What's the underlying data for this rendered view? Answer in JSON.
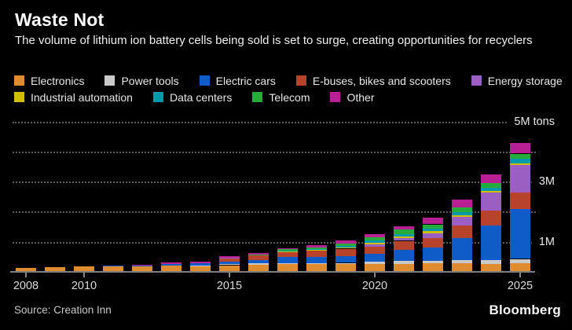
{
  "header": {
    "title": "Waste Not",
    "subtitle": "The volume of lithium ion battery cells being sold is set to surge, creating opportunities for recyclers"
  },
  "chart_data": {
    "type": "bar",
    "stacked": true,
    "unit": "M tons",
    "categories": [
      2008,
      2009,
      2010,
      2011,
      2012,
      2013,
      2014,
      2015,
      2016,
      2017,
      2018,
      2019,
      2020,
      2021,
      2022,
      2023,
      2024,
      2025
    ],
    "series": [
      {
        "name": "Electronics",
        "color": "#DE8C2F",
        "values": [
          0.12,
          0.16,
          0.18,
          0.21,
          0.19,
          0.2,
          0.2,
          0.22,
          0.24,
          0.26,
          0.25,
          0.25,
          0.27,
          0.27,
          0.28,
          0.29,
          0.27,
          0.28
        ]
      },
      {
        "name": "Power tools",
        "color": "#C9C9C9",
        "values": [
          0,
          0,
          0,
          0,
          0,
          0,
          0.01,
          0.03,
          0.04,
          0.04,
          0.04,
          0.05,
          0.08,
          0.09,
          0.08,
          0.1,
          0.11,
          0.15
        ]
      },
      {
        "name": "Electric cars",
        "color": "#0F5BC8",
        "values": [
          0,
          0,
          0,
          0.01,
          0.04,
          0.07,
          0.09,
          0.09,
          0.1,
          0.2,
          0.2,
          0.22,
          0.24,
          0.37,
          0.45,
          0.74,
          1.17,
          1.65
        ]
      },
      {
        "name": "E-buses, bikes and scooters",
        "color": "#B7432C",
        "values": [
          0,
          0,
          0,
          0,
          0,
          0,
          0,
          0.12,
          0.18,
          0.15,
          0.21,
          0.25,
          0.24,
          0.3,
          0.32,
          0.41,
          0.49,
          0.55
        ]
      },
      {
        "name": "Energy storage",
        "color": "#9B5FC4",
        "values": [
          0,
          0,
          0,
          0,
          0,
          0,
          0,
          0.02,
          0.01,
          0.02,
          0.02,
          0.03,
          0.09,
          0.09,
          0.16,
          0.29,
          0.59,
          0.91
        ]
      },
      {
        "name": "Industrial automation",
        "color": "#D2BE00",
        "values": [
          0,
          0,
          0,
          0,
          0,
          0,
          0,
          0,
          0,
          0.01,
          0.01,
          0.02,
          0.05,
          0.05,
          0.06,
          0.06,
          0.06,
          0.07
        ]
      },
      {
        "name": "Data centers",
        "color": "#009BAB",
        "values": [
          0,
          0,
          0,
          0,
          0,
          0,
          0,
          0,
          0,
          0.02,
          0.02,
          0.05,
          0.07,
          0.09,
          0.09,
          0.09,
          0.1,
          0.15
        ]
      },
      {
        "name": "Telecom",
        "color": "#25AC3C",
        "values": [
          0,
          0,
          0,
          0,
          0,
          0,
          0,
          0,
          0.01,
          0.05,
          0.06,
          0.08,
          0.11,
          0.14,
          0.14,
          0.16,
          0.16,
          0.17
        ]
      },
      {
        "name": "Other",
        "color": "#B81F92",
        "values": [
          0,
          0,
          0,
          0,
          0.01,
          0.04,
          0.04,
          0.05,
          0.05,
          0.03,
          0.08,
          0.09,
          0.11,
          0.11,
          0.23,
          0.26,
          0.28,
          0.35
        ]
      }
    ],
    "legend_rows": [
      5,
      4
    ],
    "grid_values": [
      1,
      2,
      3,
      4,
      5
    ],
    "y_ticks": [
      {
        "value": 1,
        "label": "1M"
      },
      {
        "value": 3,
        "label": "3M"
      },
      {
        "value": 5,
        "label": "5M tons"
      }
    ],
    "x_ticks": [
      2008,
      2010,
      2015,
      2020,
      2025
    ],
    "ylim": [
      0,
      5.2
    ],
    "grid": true,
    "legend_position": "top"
  },
  "footer": {
    "source": "Source: Creation Inn",
    "brand": "Bloomberg"
  }
}
